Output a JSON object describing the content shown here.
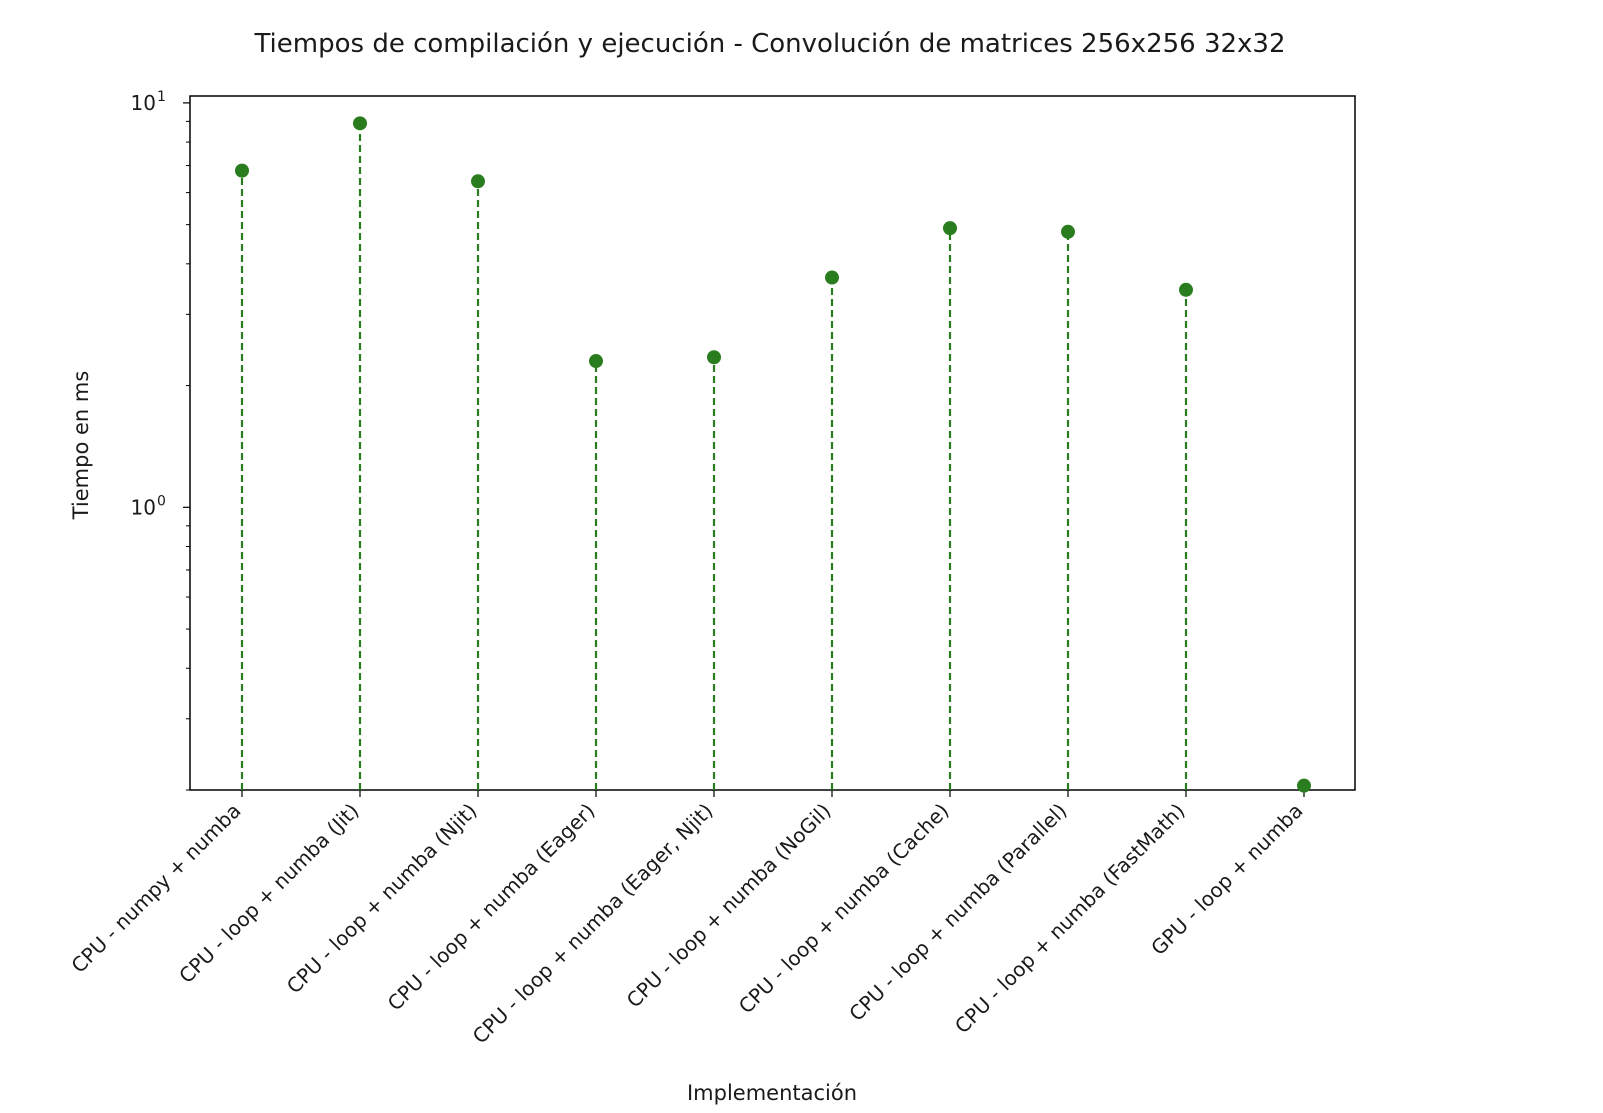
{
  "chart_data": {
    "type": "scatter",
    "style": "stem",
    "title": "Tiempos de compilación y ejecución - Convolución de matrices 256x256 32x32",
    "xlabel": "Implementación",
    "ylabel": "Tiempo en ms",
    "yscale": "log",
    "ylim": [
      0.2,
      10.4
    ],
    "grid": false,
    "legend": "none",
    "color": "#2a7d1e",
    "categories": [
      "CPU - numpy + numba",
      "CPU - loop + numba (Jit)",
      "CPU - loop + numba (Njit)",
      "CPU - loop + numba (Eager)",
      "CPU - loop + numba (Eager, Njit)",
      "CPU - loop + numba (NoGil)",
      "CPU - loop + numba (Cache)",
      "CPU - loop + numba (Parallel)",
      "CPU - loop + numba (FastMath)",
      "GPU - loop + numba"
    ],
    "values": [
      6.8,
      8.9,
      6.4,
      2.3,
      2.35,
      3.7,
      4.9,
      4.8,
      3.45,
      0.205
    ],
    "yticks": [
      {
        "value": 10,
        "base": "10",
        "exp": "1"
      },
      {
        "value": 1,
        "base": "10",
        "exp": "0"
      }
    ]
  }
}
